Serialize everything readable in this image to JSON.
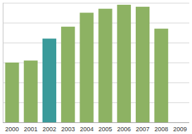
{
  "chart_data": {
    "type": "bar",
    "categories": [
      "2000",
      "2001",
      "2002",
      "2003",
      "2004",
      "2005",
      "2006",
      "2007",
      "2008",
      "2009"
    ],
    "values": [
      3.0,
      3.1,
      4.2,
      4.8,
      5.5,
      5.7,
      5.9,
      5.8,
      4.7,
      null
    ],
    "colors": [
      "#8db263",
      "#8db263",
      "#3a9a9a",
      "#8db263",
      "#8db263",
      "#8db263",
      "#8db263",
      "#8db263",
      "#8db263",
      "#8db263"
    ],
    "ylim": [
      0,
      6
    ],
    "yticks": [
      0,
      1,
      2,
      3,
      4,
      5,
      6
    ],
    "grid": true,
    "tick_labels": "x"
  }
}
